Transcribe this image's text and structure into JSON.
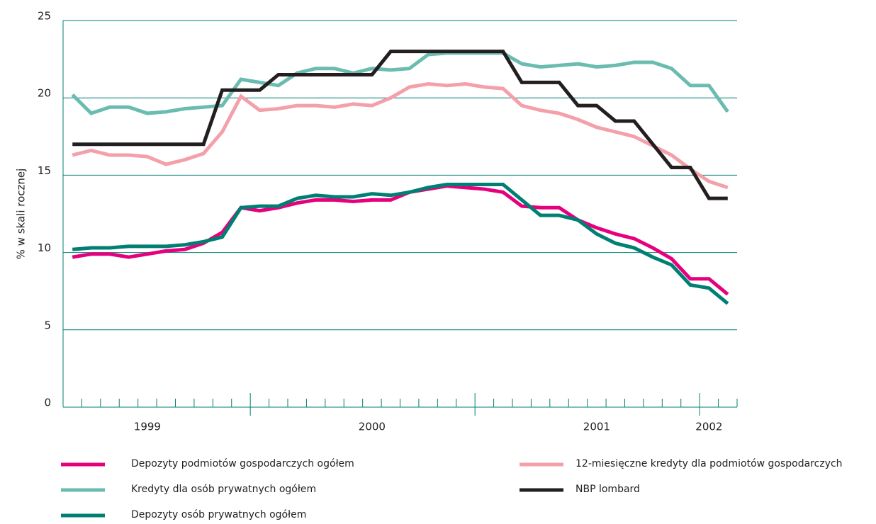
{
  "chart_data": {
    "type": "line",
    "y_label": "% w skali rocznej",
    "categories": [
      null,
      null,
      null,
      null,
      "1999",
      null,
      null,
      null,
      null,
      null,
      null,
      null,
      null,
      null,
      null,
      null,
      "2000",
      null,
      null,
      null,
      null,
      null,
      null,
      null,
      null,
      null,
      null,
      null,
      "2001",
      null,
      null,
      null,
      null,
      null,
      "2002",
      null
    ],
    "ylim": [
      0,
      25
    ],
    "yticks": [
      0,
      5,
      10,
      15,
      20,
      25
    ],
    "grid": true,
    "series": [
      {
        "name": "Depozyty podmiotów gospodarczych ogółem",
        "color": "#e6007e",
        "values": [
          9.7,
          9.9,
          9.9,
          9.7,
          9.9,
          10.1,
          10.2,
          10.6,
          11.3,
          12.9,
          12.7,
          12.9,
          13.2,
          13.4,
          13.4,
          13.3,
          13.4,
          13.4,
          13.9,
          14.1,
          14.3,
          14.2,
          14.1,
          13.9,
          13.0,
          12.9,
          12.9,
          12.1,
          11.6,
          11.2,
          10.9,
          10.3,
          9.6,
          8.3,
          8.3,
          7.3
        ]
      },
      {
        "name": "Kredyty dla osób prywatnych ogółem",
        "color": "#6bbcb0",
        "values": [
          20.2,
          19.0,
          19.4,
          19.4,
          19.0,
          19.1,
          19.3,
          19.4,
          19.5,
          21.2,
          21.0,
          20.8,
          21.6,
          21.9,
          21.9,
          21.6,
          21.9,
          21.8,
          21.9,
          22.8,
          22.9,
          22.9,
          22.9,
          22.9,
          22.2,
          22.0,
          22.1,
          22.2,
          22.0,
          22.1,
          22.3,
          22.3,
          21.9,
          20.8,
          20.8,
          19.1
        ]
      },
      {
        "name": "Depozyty osób prywatnych ogółem",
        "color": "#007f73",
        "values": [
          10.2,
          10.3,
          10.3,
          10.4,
          10.4,
          10.4,
          10.5,
          10.7,
          11.0,
          12.9,
          13.0,
          13.0,
          13.5,
          13.7,
          13.6,
          13.6,
          13.8,
          13.7,
          13.9,
          14.2,
          14.4,
          14.4,
          14.4,
          14.4,
          13.4,
          12.4,
          12.4,
          12.1,
          11.2,
          10.6,
          10.3,
          9.7,
          9.2,
          7.9,
          7.7,
          6.7
        ]
      },
      {
        "name": "12-miesięczne kredyty dla podmiotów gospodarczych",
        "color": "#f4a0aa",
        "values": [
          16.3,
          16.6,
          16.3,
          16.3,
          16.2,
          15.7,
          16.0,
          16.4,
          17.8,
          20.1,
          19.2,
          19.3,
          19.5,
          19.5,
          19.4,
          19.6,
          19.5,
          20.0,
          20.7,
          20.9,
          20.8,
          20.9,
          20.7,
          20.6,
          19.5,
          19.2,
          19.0,
          18.6,
          18.1,
          17.8,
          17.5,
          16.9,
          16.3,
          15.4,
          14.6,
          14.2
        ]
      },
      {
        "name": "NBP lombard",
        "color": "#231f20",
        "values": [
          17,
          17,
          17,
          17,
          17,
          17,
          17,
          17,
          20.5,
          20.5,
          20.5,
          21.5,
          21.5,
          21.5,
          21.5,
          21.5,
          21.5,
          23,
          23,
          23,
          23,
          23,
          23,
          23,
          21,
          21,
          21,
          19.5,
          19.5,
          18.5,
          18.5,
          17,
          15.5,
          15.5,
          13.5,
          13.5
        ]
      }
    ]
  }
}
